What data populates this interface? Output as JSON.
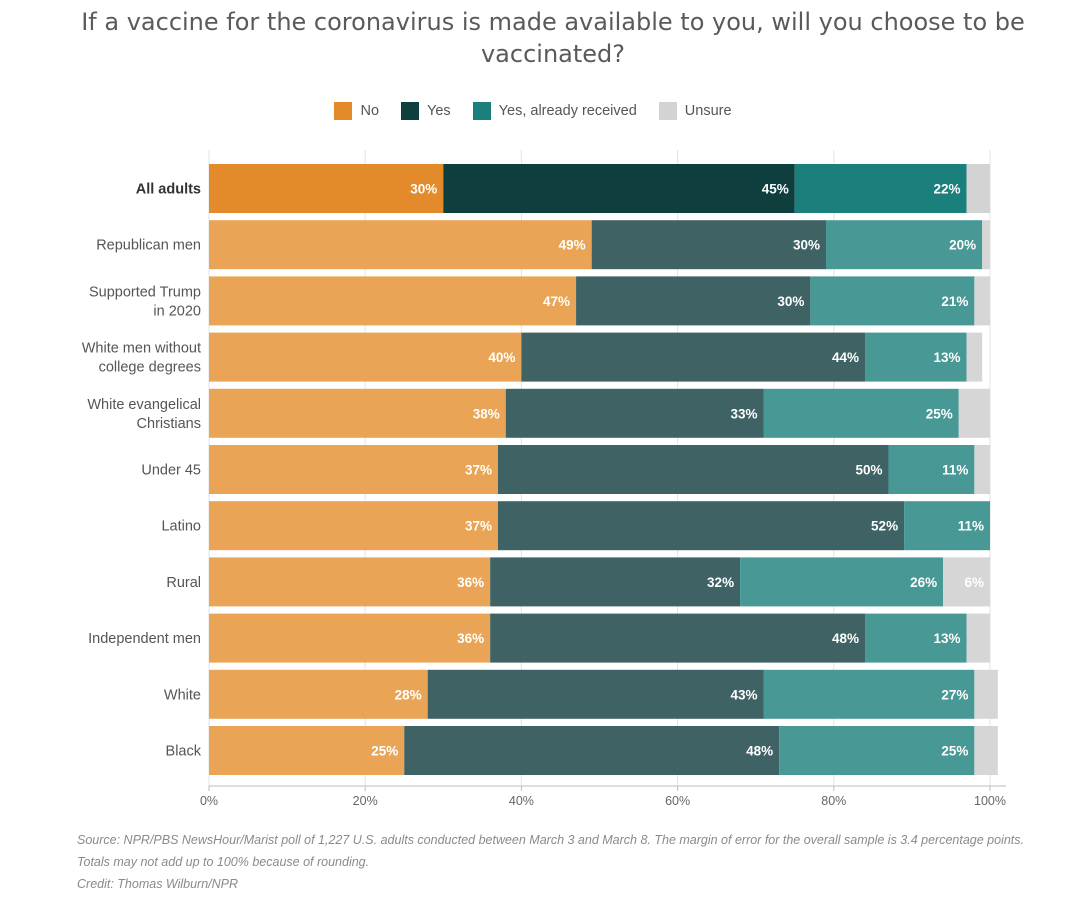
{
  "chart_data": {
    "type": "bar",
    "orientation": "horizontal",
    "stacked": true,
    "title": "If a vaccine for the coronavirus is made available to you, will you choose to be vaccinated?",
    "legend": [
      "No",
      "Yes",
      "Yes, already received",
      "Unsure"
    ],
    "legend_position": "top-center",
    "categories": [
      "All adults",
      "Republican men",
      "Supported Trump in 2020",
      "White men without college degrees",
      "White evangelical Christians",
      "Under 45",
      "Latino",
      "Rural",
      "Independent men",
      "White",
      "Black"
    ],
    "category_lines": [
      [
        "All adults"
      ],
      [
        "Republican men"
      ],
      [
        "Supported Trump",
        "in 2020"
      ],
      [
        "White men without",
        "college degrees"
      ],
      [
        "White evangelical",
        "Christians"
      ],
      [
        "Under 45"
      ],
      [
        "Latino"
      ],
      [
        "Rural"
      ],
      [
        "Independent men"
      ],
      [
        "White"
      ],
      [
        "Black"
      ]
    ],
    "highlight_category": "All adults",
    "series": [
      {
        "name": "No",
        "values": [
          30,
          49,
          47,
          40,
          38,
          37,
          37,
          36,
          36,
          28,
          25
        ]
      },
      {
        "name": "Yes",
        "values": [
          45,
          30,
          30,
          44,
          33,
          50,
          52,
          32,
          48,
          43,
          48
        ]
      },
      {
        "name": "Yes, already received",
        "values": [
          22,
          20,
          21,
          13,
          25,
          11,
          11,
          26,
          13,
          27,
          25
        ]
      },
      {
        "name": "Unsure",
        "values": [
          3,
          1,
          2,
          2,
          4,
          2,
          0,
          6,
          3,
          3,
          3
        ]
      }
    ],
    "labels": [
      [
        "30%",
        "45%",
        "22%",
        ""
      ],
      [
        "49%",
        "30%",
        "20%",
        ""
      ],
      [
        "47%",
        "30%",
        "21%",
        ""
      ],
      [
        "40%",
        "44%",
        "13%",
        ""
      ],
      [
        "38%",
        "33%",
        "25%",
        ""
      ],
      [
        "37%",
        "50%",
        "11%",
        ""
      ],
      [
        "37%",
        "52%",
        "11%",
        ""
      ],
      [
        "36%",
        "32%",
        "26%",
        "6%"
      ],
      [
        "36%",
        "48%",
        "13%",
        ""
      ],
      [
        "28%",
        "43%",
        "27%",
        ""
      ],
      [
        "25%",
        "48%",
        "25%",
        ""
      ]
    ],
    "xlim": [
      0,
      100
    ],
    "xticks": [
      "0%",
      "20%",
      "40%",
      "60%",
      "80%",
      "100%"
    ],
    "grid": true,
    "colors": {
      "highlight": [
        "#e38b2b",
        "#0f3e3f",
        "#1b7f7c",
        "#d3d3d3"
      ],
      "normal": [
        "#e9a555",
        "#3f6264",
        "#489896",
        "#d6d6d6"
      ]
    }
  },
  "footnote": {
    "source": "Source: NPR/PBS NewsHour/Marist poll of 1,227 U.S. adults conducted between March 3 and March 8. The margin of error for the overall sample is 3.4 percentage points. Totals may not add up to 100% because of rounding.",
    "credit": "Credit: Thomas Wilburn/NPR"
  }
}
